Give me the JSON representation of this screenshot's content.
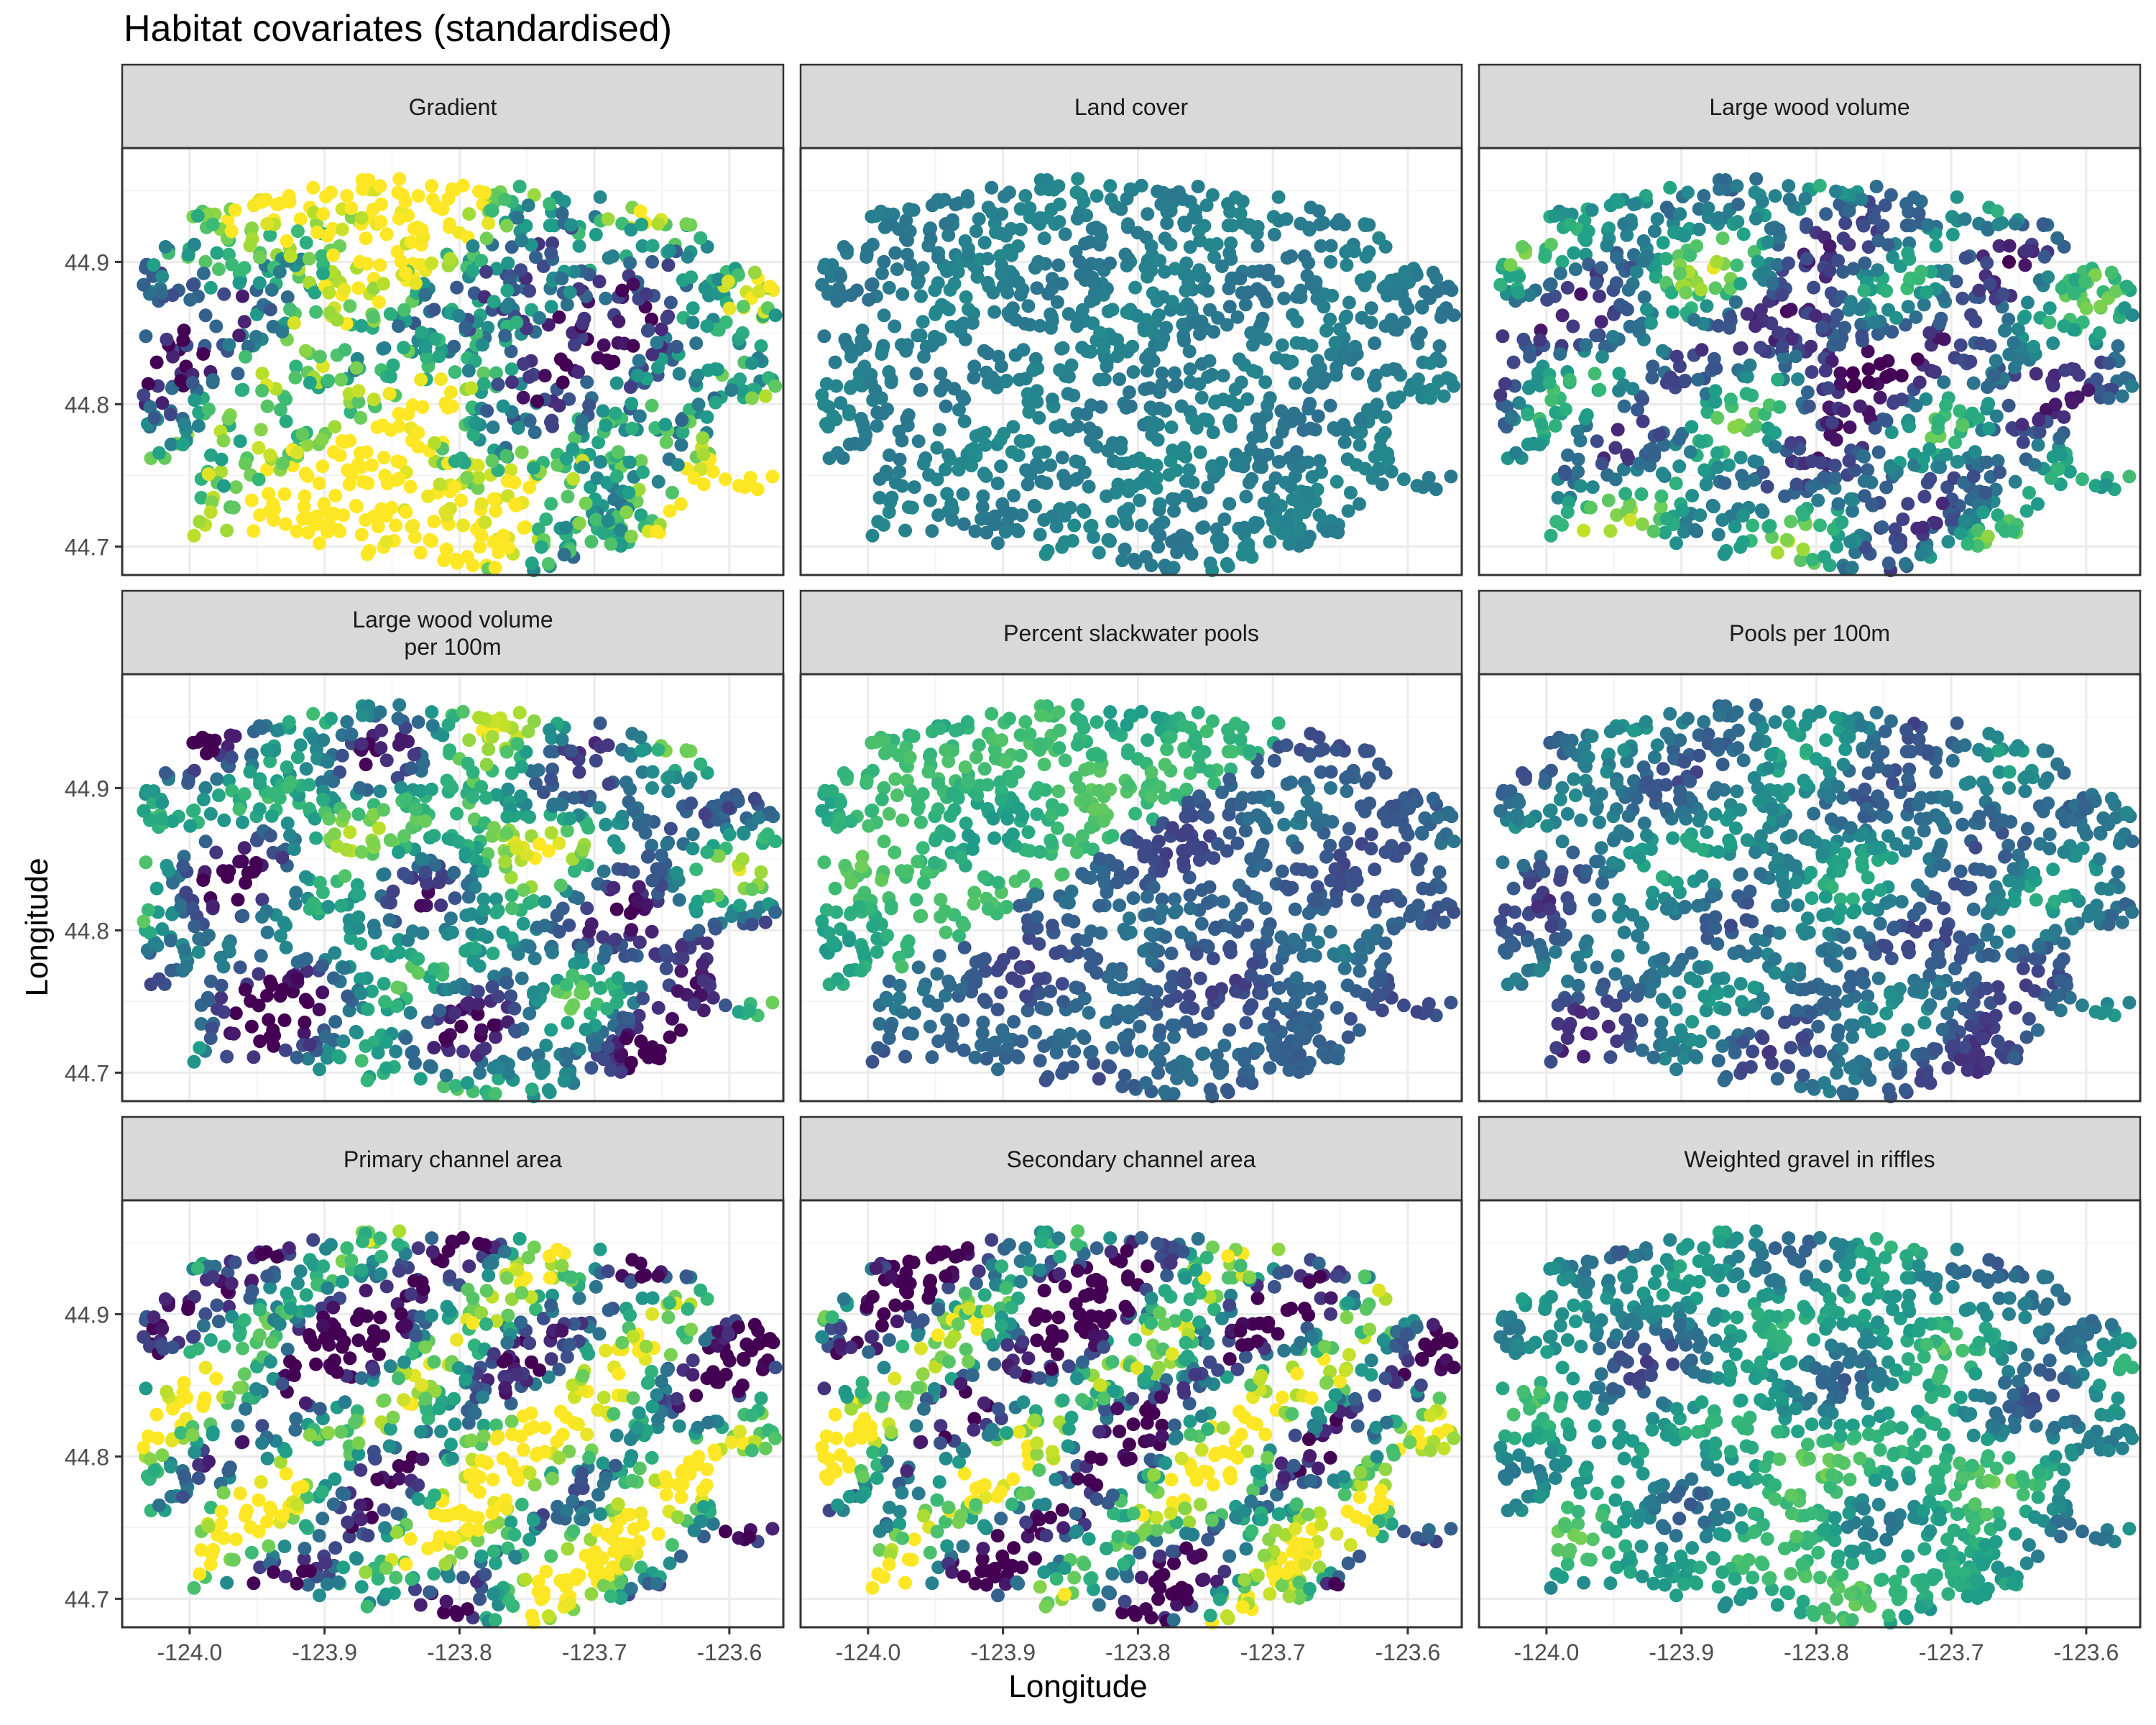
{
  "title": "Habitat covariates (standardised)",
  "chart_data": {
    "type": "scatter",
    "title": "Habitat covariates (standardised)",
    "xlabel": "Longitude",
    "ylabel": "Longitude",
    "xlim": [
      -124.05,
      -123.56
    ],
    "ylim": [
      44.68,
      44.98
    ],
    "x_ticks": [
      -124.0,
      -123.9,
      -123.8,
      -123.7,
      -123.6
    ],
    "x_tick_labels": [
      "-124.0",
      "-123.9",
      "-123.8",
      "-123.7",
      "-123.6"
    ],
    "y_ticks": [
      44.7,
      44.8,
      44.9
    ],
    "y_tick_labels": [
      "44.7",
      "44.8",
      "44.9"
    ],
    "grid": true,
    "legend": "none",
    "color_scale": "viridis",
    "palette": [
      "#440154",
      "#3b528b",
      "#21908c",
      "#5dc863",
      "#fde725"
    ],
    "facets": [
      {
        "name": "Gradient",
        "label_lines": [
          "Gradient"
        ],
        "seed": 11,
        "pattern": [
          0.8,
          0.4,
          0.3,
          0.0,
          0.2,
          0.5,
          0.3
        ]
      },
      {
        "name": "Land cover",
        "label_lines": [
          "Land cover"
        ],
        "seed": 23,
        "pattern": [
          0.05,
          0.05,
          0.0,
          0.1,
          -0.2,
          0.1,
          0.1
        ]
      },
      {
        "name": "Large wood volume",
        "label_lines": [
          "Large wood volume"
        ],
        "seed": 37,
        "pattern": [
          0.35,
          0.15,
          0.5,
          0.35,
          0.3,
          0.4,
          0.15
        ]
      },
      {
        "name": "Large wood volume per 100m",
        "label_lines": [
          "Large wood volume",
          "per 100m"
        ],
        "seed": 41,
        "pattern": [
          0.4,
          0.15,
          0.4,
          0.45,
          0.25,
          0.45,
          0.12
        ]
      },
      {
        "name": "Percent slackwater pools",
        "label_lines": [
          "Percent slackwater pools"
        ],
        "seed": 53,
        "pattern": [
          0.45,
          0.0,
          0.9,
          0.2,
          0.1,
          0.25,
          0.08
        ]
      },
      {
        "name": "Pools per 100m",
        "label_lines": [
          "Pools per 100m"
        ],
        "seed": 67,
        "pattern": [
          0.25,
          0.1,
          0.5,
          0.25,
          0.2,
          0.3,
          0.1
        ]
      },
      {
        "name": "Primary channel area",
        "label_lines": [
          "Primary channel area"
        ],
        "seed": 71,
        "pattern": [
          0.55,
          0.2,
          0.2,
          0.25,
          0.5,
          0.55,
          0.2
        ]
      },
      {
        "name": "Secondary channel area",
        "label_lines": [
          "Secondary channel area"
        ],
        "seed": 83,
        "pattern": [
          0.45,
          0.15,
          0.1,
          0.3,
          0.5,
          0.6,
          0.22
        ]
      },
      {
        "name": "Weighted gravel in riffles",
        "label_lines": [
          "Weighted gravel in riffles"
        ],
        "seed": 97,
        "pattern": [
          0.55,
          0.1,
          0.2,
          0.3,
          0.15,
          0.35,
          0.08
        ]
      }
    ]
  }
}
